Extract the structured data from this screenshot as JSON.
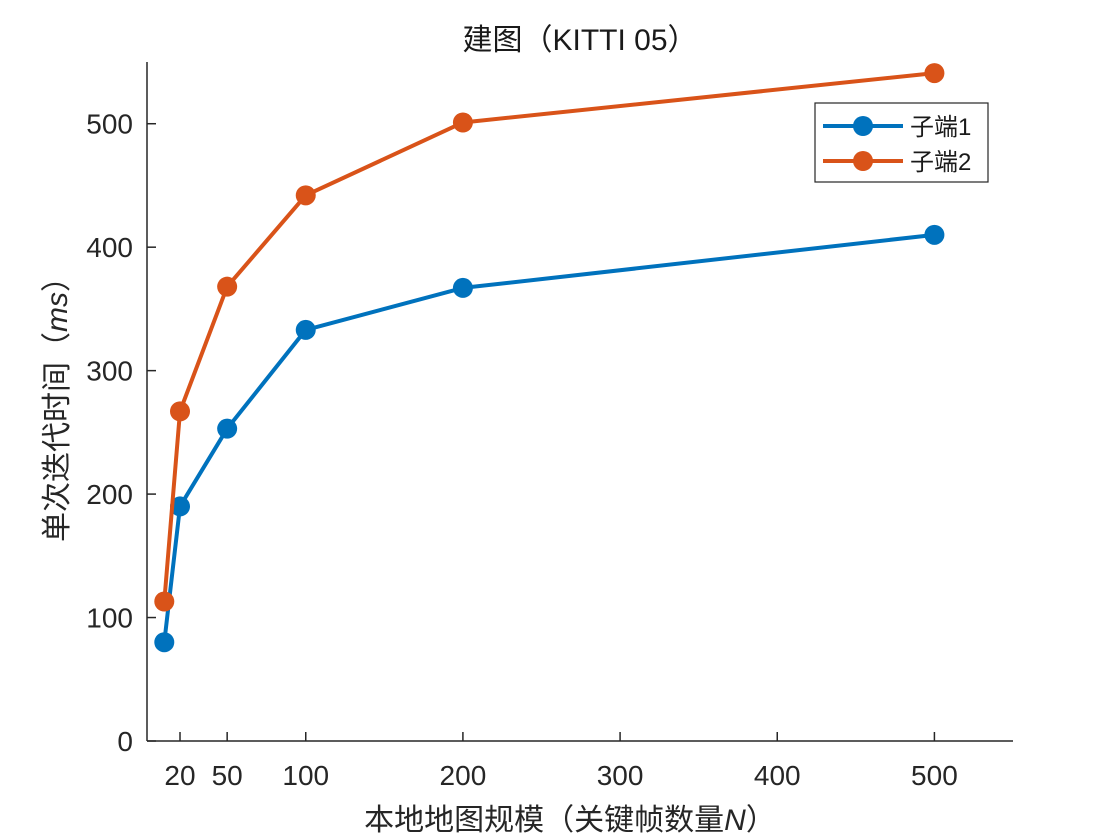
{
  "chart_data": {
    "type": "line",
    "title": "建图（KITTI 05）",
    "xlabel_main": "本地地图规模（关键帧数量",
    "xlabel_var": "N",
    "xlabel_close": "）",
    "ylabel_main": "单次迭代时间（",
    "ylabel_var": "ms",
    "ylabel_close": "）",
    "x_ticks": [
      {
        "label": "20",
        "pos": 20
      },
      {
        "label": "50",
        "pos": 50
      },
      {
        "label": "100",
        "pos": 100
      },
      {
        "label": "200",
        "pos": 200
      },
      {
        "label": "300",
        "pos": 300
      },
      {
        "label": "400",
        "pos": 400
      },
      {
        "label": "500",
        "pos": 500
      }
    ],
    "y_ticks": [
      0,
      100,
      200,
      300,
      400,
      500
    ],
    "xlim": [
      -1,
      550
    ],
    "ylim": [
      0,
      550
    ],
    "grid": false,
    "legend_position": "top-right",
    "series": [
      {
        "name": "子端1",
        "color": "#0072BD",
        "points": [
          {
            "x": 10,
            "y": 80
          },
          {
            "x": 20,
            "y": 190
          },
          {
            "x": 50,
            "y": 253
          },
          {
            "x": 100,
            "y": 333
          },
          {
            "x": 200,
            "y": 367
          },
          {
            "x": 500,
            "y": 410
          }
        ]
      },
      {
        "name": "子端2",
        "color": "#D95319",
        "points": [
          {
            "x": 10,
            "y": 113
          },
          {
            "x": 20,
            "y": 267
          },
          {
            "x": 50,
            "y": 368
          },
          {
            "x": 100,
            "y": 442
          },
          {
            "x": 200,
            "y": 501
          },
          {
            "x": 500,
            "y": 541
          }
        ]
      }
    ]
  }
}
